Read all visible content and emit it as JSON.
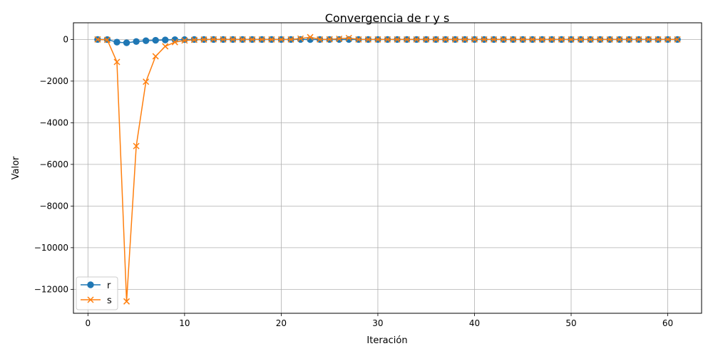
{
  "chart_data": {
    "type": "line",
    "title": "Convergencia de r y s",
    "xlabel": "Iteración",
    "ylabel": "Valor",
    "xlim": [
      -1.5,
      63.5
    ],
    "ylim": [
      -13150,
      800
    ],
    "xticks": [
      0,
      10,
      20,
      30,
      40,
      50,
      60
    ],
    "yticks": [
      0,
      -2000,
      -4000,
      -6000,
      -8000,
      -10000,
      -12000
    ],
    "grid": true,
    "legend_position": "lower-left",
    "x": [
      1,
      2,
      3,
      4,
      5,
      6,
      7,
      8,
      9,
      10,
      11,
      12,
      13,
      14,
      15,
      16,
      17,
      18,
      19,
      20,
      21,
      22,
      23,
      24,
      25,
      26,
      27,
      28,
      29,
      30,
      31,
      32,
      33,
      34,
      35,
      36,
      37,
      38,
      39,
      40,
      41,
      42,
      43,
      44,
      45,
      46,
      47,
      48,
      49,
      50,
      51,
      52,
      53,
      54,
      55,
      56,
      57,
      58,
      59,
      60,
      61
    ],
    "series": [
      {
        "name": "r",
        "color": "#1f77b4",
        "marker": "circle",
        "values": [
          0,
          -5,
          -130,
          -160,
          -100,
          -60,
          -40,
          -25,
          -10,
          -5,
          -3,
          -2,
          -1,
          0,
          0,
          0,
          0,
          0,
          0,
          0,
          0,
          0,
          -5,
          -3,
          -2,
          -2,
          -3,
          0,
          0,
          0,
          0,
          0,
          0,
          0,
          0,
          0,
          0,
          0,
          0,
          0,
          0,
          0,
          0,
          0,
          0,
          0,
          0,
          0,
          0,
          0,
          0,
          0,
          0,
          0,
          0,
          0,
          0,
          0,
          0,
          0,
          0
        ]
      },
      {
        "name": "s",
        "color": "#ff7f0e",
        "marker": "x",
        "values": [
          0,
          -20,
          -1080,
          -12580,
          -5120,
          -2030,
          -810,
          -330,
          -130,
          -50,
          -20,
          -5,
          5,
          0,
          0,
          0,
          0,
          0,
          0,
          0,
          0,
          40,
          110,
          0,
          10,
          30,
          70,
          0,
          0,
          0,
          0,
          0,
          0,
          0,
          0,
          0,
          0,
          0,
          0,
          0,
          0,
          0,
          0,
          0,
          0,
          0,
          0,
          0,
          0,
          0,
          0,
          0,
          0,
          0,
          0,
          0,
          0,
          0,
          0,
          0,
          0
        ]
      }
    ]
  }
}
